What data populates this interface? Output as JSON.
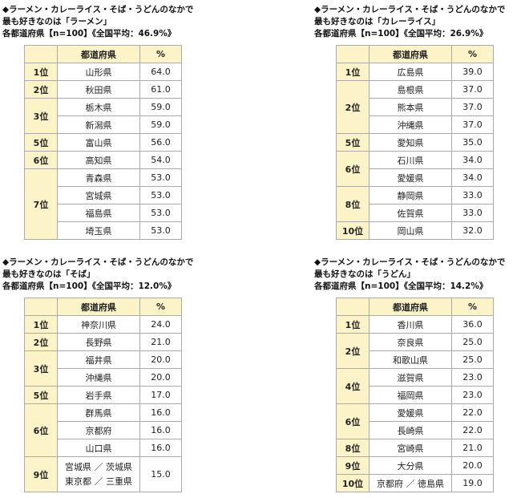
{
  "tables": [
    {
      "heading": [
        "◆ラーメン・カレーライス・そば・うどんのなかで",
        "最も好きなのは「ラーメン」",
        "各都道府県【n=100】《全国平均：46.9%》"
      ],
      "header": [
        "都道府県",
        "%"
      ],
      "rows": [
        {
          "rank": "1位",
          "entries": [
            {
              "pref": "山形県",
              "pct": "64.0"
            }
          ]
        },
        {
          "rank": "2位",
          "entries": [
            {
              "pref": "秋田県",
              "pct": "61.0"
            }
          ]
        },
        {
          "rank": "3位",
          "entries": [
            {
              "pref": "栃木県",
              "pct": "59.0"
            },
            {
              "pref": "新潟県",
              "pct": "59.0"
            }
          ]
        },
        {
          "rank": "5位",
          "entries": [
            {
              "pref": "富山県",
              "pct": "56.0"
            }
          ]
        },
        {
          "rank": "6位",
          "entries": [
            {
              "pref": "高知県",
              "pct": "54.0"
            }
          ]
        },
        {
          "rank": "7位",
          "entries": [
            {
              "pref": "青森県",
              "pct": "53.0"
            },
            {
              "pref": "宮城県",
              "pct": "53.0"
            },
            {
              "pref": "福島県",
              "pct": "53.0"
            },
            {
              "pref": "埼玉県",
              "pct": "53.0"
            }
          ]
        }
      ]
    },
    {
      "heading": [
        "◆ラーメン・カレーライス・そば・うどんのなかで",
        "最も好きなのは「カレーライス」",
        "各都道府県【n=100】《全国平均：26.9%》"
      ],
      "header": [
        "都道府県",
        "%"
      ],
      "rows": [
        {
          "rank": "1位",
          "entries": [
            {
              "pref": "広島県",
              "pct": "39.0"
            }
          ]
        },
        {
          "rank": "2位",
          "entries": [
            {
              "pref": "島根県",
              "pct": "37.0"
            },
            {
              "pref": "熊本県",
              "pct": "37.0"
            },
            {
              "pref": "沖縄県",
              "pct": "37.0"
            }
          ]
        },
        {
          "rank": "5位",
          "entries": [
            {
              "pref": "愛知県",
              "pct": "35.0"
            }
          ]
        },
        {
          "rank": "6位",
          "entries": [
            {
              "pref": "石川県",
              "pct": "34.0"
            },
            {
              "pref": "愛媛県",
              "pct": "34.0"
            }
          ]
        },
        {
          "rank": "8位",
          "entries": [
            {
              "pref": "静岡県",
              "pct": "33.0"
            },
            {
              "pref": "佐賀県",
              "pct": "33.0"
            }
          ]
        },
        {
          "rank": "10位",
          "entries": [
            {
              "pref": "岡山県",
              "pct": "32.0"
            }
          ]
        }
      ]
    },
    {
      "heading": [
        "◆ラーメン・カレーライス・そば・うどんのなかで",
        "最も好きなのは「そば」",
        "各都道府県【n=100】《全国平均：12.0%》"
      ],
      "header": [
        "都道府県",
        "%"
      ],
      "rows": [
        {
          "rank": "1位",
          "entries": [
            {
              "pref": "神奈川県",
              "pct": "24.0"
            }
          ]
        },
        {
          "rank": "2位",
          "entries": [
            {
              "pref": "長野県",
              "pct": "21.0"
            }
          ]
        },
        {
          "rank": "3位",
          "entries": [
            {
              "pref": "福井県",
              "pct": "20.0"
            },
            {
              "pref": "沖縄県",
              "pct": "20.0"
            }
          ]
        },
        {
          "rank": "5位",
          "entries": [
            {
              "pref": "岩手県",
              "pct": "17.0"
            }
          ]
        },
        {
          "rank": "6位",
          "entries": [
            {
              "pref": "群馬県",
              "pct": "16.0"
            },
            {
              "pref": "京都府",
              "pct": "16.0"
            },
            {
              "pref": "山口県",
              "pct": "16.0"
            }
          ]
        },
        {
          "rank": "9位",
          "entries": [
            {
              "pref": [
                "宮城県 ／ 茨城県",
                "東京都 ／ 三重県"
              ],
              "pct": "15.0"
            }
          ]
        }
      ]
    },
    {
      "heading": [
        "◆ラーメン・カレーライス・そば・うどんのなかで",
        "最も好きなのは「うどん」",
        "各都道府県【n=100】《全国平均：14.2%》"
      ],
      "header": [
        "都道府県",
        "%"
      ],
      "rows": [
        {
          "rank": "1位",
          "entries": [
            {
              "pref": "香川県",
              "pct": "36.0"
            }
          ]
        },
        {
          "rank": "2位",
          "entries": [
            {
              "pref": "奈良県",
              "pct": "25.0"
            },
            {
              "pref": "和歌山県",
              "pct": "25.0"
            }
          ]
        },
        {
          "rank": "4位",
          "entries": [
            {
              "pref": "滋賀県",
              "pct": "23.0"
            },
            {
              "pref": "福岡県",
              "pct": "23.0"
            }
          ]
        },
        {
          "rank": "6位",
          "entries": [
            {
              "pref": "愛媛県",
              "pct": "22.0"
            },
            {
              "pref": "長崎県",
              "pct": "22.0"
            }
          ]
        },
        {
          "rank": "8位",
          "entries": [
            {
              "pref": "宮崎県",
              "pct": "21.0"
            }
          ]
        },
        {
          "rank": "9位",
          "entries": [
            {
              "pref": "大分県",
              "pct": "20.0"
            }
          ]
        },
        {
          "rank": "10位",
          "entries": [
            {
              "pref": "京都府 ／ 徳島県",
              "pct": "19.0"
            }
          ]
        }
      ]
    }
  ]
}
